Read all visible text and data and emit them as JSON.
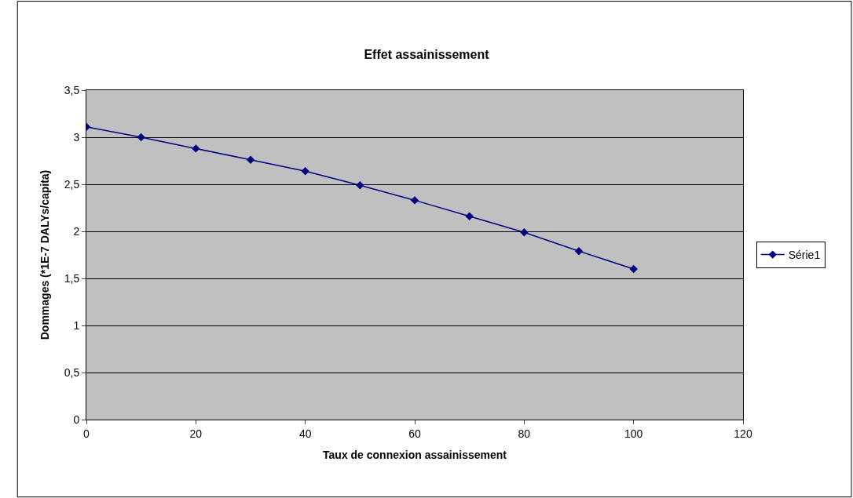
{
  "chart_data": {
    "type": "line",
    "title": "Effet assainissement",
    "xlabel": "Taux de connexion assainissement",
    "ylabel": "Dommages (*1E-7 DALYs/capita)",
    "x": [
      0,
      10,
      20,
      30,
      40,
      50,
      60,
      70,
      80,
      90,
      100
    ],
    "series": [
      {
        "name": "Série1",
        "color": "#000080",
        "values": [
          3.11,
          3.0,
          2.88,
          2.76,
          2.64,
          2.49,
          2.33,
          2.16,
          1.99,
          1.79,
          1.6
        ]
      }
    ],
    "xlim": [
      0,
      120
    ],
    "xticks": [
      0,
      20,
      40,
      60,
      80,
      100,
      120
    ],
    "ylim": [
      0,
      3.5
    ],
    "yticks": [
      0,
      {
        "value": 0.5,
        "label": "0,5"
      },
      1,
      {
        "value": 1.5,
        "label": "1,5"
      },
      2,
      {
        "value": 2.5,
        "label": "2,5"
      },
      3,
      {
        "value": 3.5,
        "label": "3,5"
      }
    ],
    "grid": "y",
    "legend": "right",
    "marker": "diamond",
    "line_style": "solid"
  }
}
